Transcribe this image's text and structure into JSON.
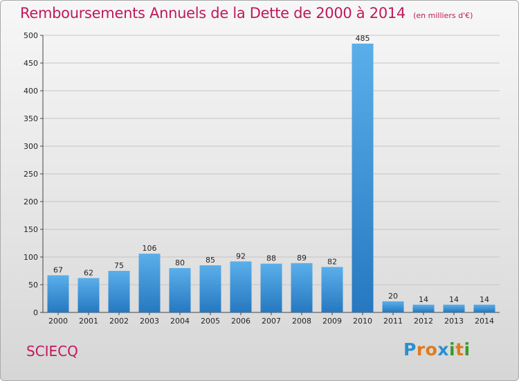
{
  "chart_data": {
    "type": "bar",
    "title": "Remboursements Annuels de la Dette de 2000 à 2014",
    "subtitle": "(en milliers d'€)",
    "categories": [
      "2000",
      "2001",
      "2002",
      "2003",
      "2004",
      "2005",
      "2006",
      "2007",
      "2008",
      "2009",
      "2010",
      "2011",
      "2012",
      "2013",
      "2014"
    ],
    "values": [
      67,
      62,
      75,
      106,
      80,
      85,
      92,
      88,
      89,
      82,
      485,
      20,
      14,
      14,
      14
    ],
    "ylim": [
      0,
      500
    ],
    "yticks": [
      0,
      50,
      100,
      150,
      200,
      250,
      300,
      350,
      400,
      450,
      500
    ],
    "grid": true,
    "colors": {
      "bar_light": "#5aafea",
      "bar_dark": "#2678c0",
      "title": "#c0185a"
    }
  },
  "footer": {
    "commune": "SCIECQ",
    "logo": [
      "P",
      "r",
      "o",
      "x",
      "i",
      "t",
      "i"
    ],
    "logo_colors": [
      "#2a8fd0",
      "#e07b1a",
      "#e07b1a",
      "#2a8fd0",
      "#3a9a2a",
      "#e07b1a",
      "#3a9a2a"
    ]
  }
}
